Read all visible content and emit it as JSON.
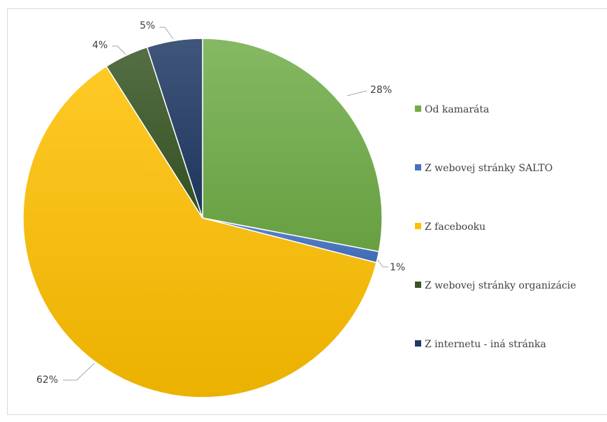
{
  "chart_data": {
    "type": "pie",
    "title": "",
    "series": [
      {
        "values": [
          28,
          1,
          62,
          4,
          5
        ]
      }
    ],
    "categories": [
      "Od kamaráta",
      "Z webovej stránky SALTO",
      "Z facebooku",
      "Z webovej stránky organizácie",
      "Z internetu - iná stránka"
    ],
    "data_labels": [
      "28%",
      "1%",
      "62%",
      "4%",
      "5%"
    ],
    "colors": [
      "#70ad47",
      "#4472c4",
      "#ffc000",
      "#375623",
      "#203864"
    ],
    "legend_position": "right"
  }
}
